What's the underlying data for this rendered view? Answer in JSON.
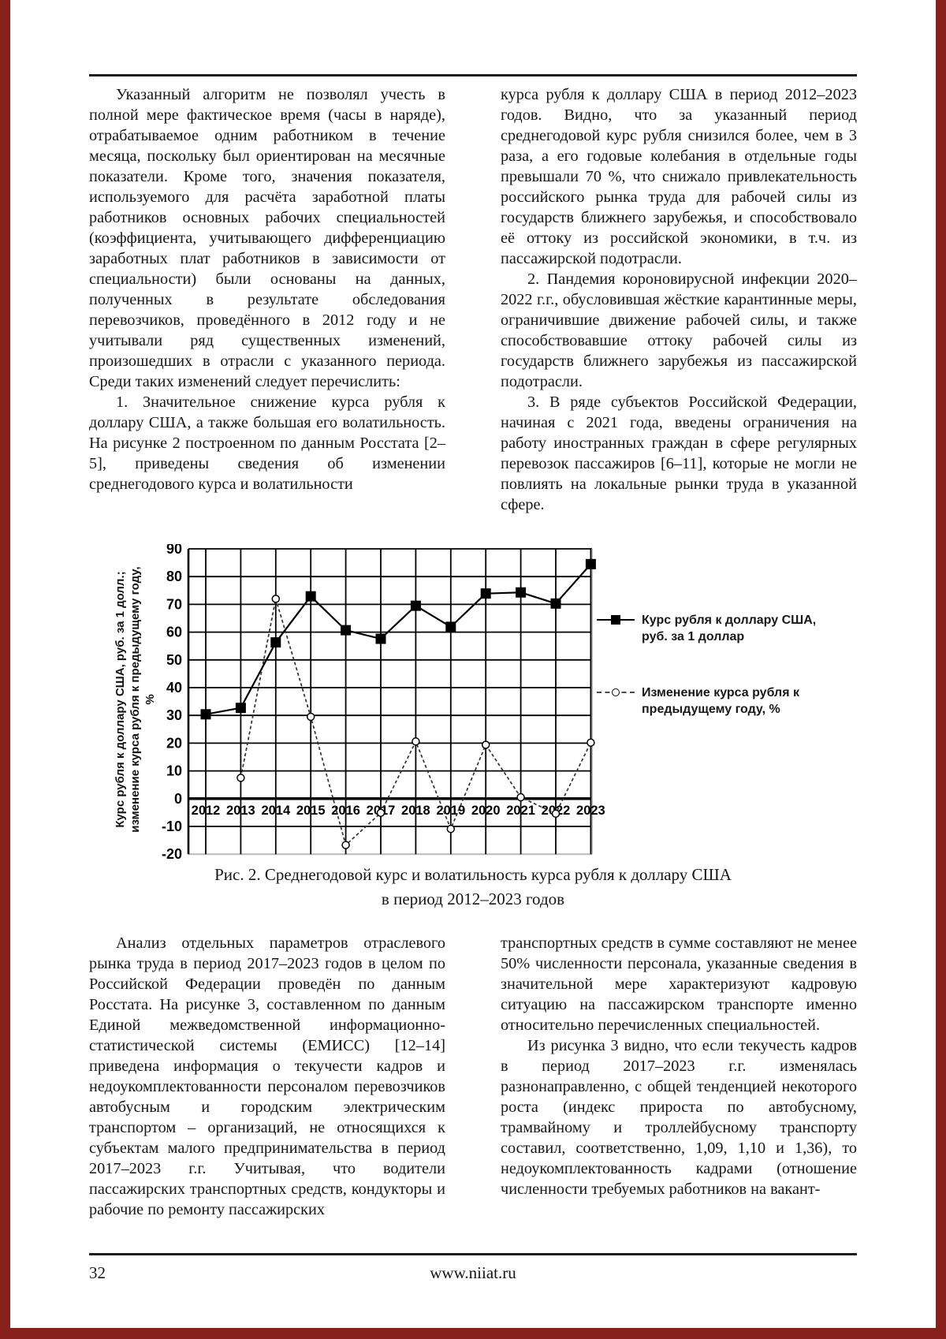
{
  "article": {
    "top_left": {
      "p1": "Указанный алгоритм не позволял учесть в полной мере фактическое время (часы в наряде), отрабатываемое одним работником в течение месяца, поскольку был ориентирован на месячные показатели. Кроме того, значения показателя, используемого для расчёта заработной платы работников основных рабочих специальностей (коэффициента, учитывающего дифференциацию заработных плат работников в зависимости от специальности) были основаны на данных, полученных в результате обследования перевозчиков, проведённого в 2012 году и не учитывали ряд существенных изменений, произошедших в отрасли с указанного периода. Среди таких изменений следует перечислить:",
      "p2": "1. Значительное снижение курса рубля к доллару США, а также большая его волатильность. На рисунке 2 построенном по данным Росстата [2–5], приведены сведения об изменении среднегодового курса и волатильности"
    },
    "top_right": {
      "p1": "курса рубля к доллару США в период 2012–2023 годов. Видно, что за указанный период среднегодовой курс рубля снизился более, чем в 3 раза, а его годовые колебания в отдельные годы превышали 70 %, что снижало привлекательность российского рынка труда для рабочей силы из государств ближнего зарубежья, и способствовало её оттоку из российской экономики, в т.ч. из пассажирской подотрасли.",
      "p2": "2. Пандемия короновирусной инфекции 2020–2022 г.г., обусловившая жёсткие карантинные меры, ограничившие движение рабочей силы, и также способствовавшие оттоку рабочей силы из государств ближнего зарубежья из пассажирской подотрасли.",
      "p3": "3. В ряде субъектов Российской Федерации, начиная с 2021 года, введены ограничения на работу иностранных граждан в сфере регулярных перевозок пассажиров [6–11], которые не могли не повлиять на локальные рынки труда в указанной сфере."
    },
    "bottom_left": {
      "p1": "Анализ отдельных параметров отраслевого рынка труда в период 2017–2023 годов в целом по Российской Федерации проведён по данным Росстата. На рисунке 3, составленном по данным Единой межведомственной информационно-статистической системы (ЕМИСС) [12–14] приведена информация о текучести кадров и недоукомплектованности персоналом перевозчиков автобусным и городским электрическим транспортом – организаций, не относящихся к субъектам малого предпринимательства в период 2017–2023 г.г. Учитывая, что водители пассажирских транспортных средств, кондукторы и рабочие по ремонту пассажирских"
    },
    "bottom_right": {
      "p1": "транспортных средств в сумме составляют не менее 50% численности персонала, указанные сведения в значительной мере характеризуют кадровую ситуацию на пассажирском транспорте именно относительно перечисленных специальностей.",
      "p2": "Из рисунка 3 видно, что если текучесть кадров в период 2017–2023 г.г. изменялась разнонаправленно, с общей тенденцией некоторого роста (индекс прироста по автобусному, трамвайному и троллейбусному транспорту составил, соответственно, 1,09, 1,10 и 1,36), то недоукомплектованность кадрами (отношение численности требуемых работников на вакант-"
    }
  },
  "figure": {
    "caption_line1": "Рис. 2. Среднегодовой курс и волатильность курса рубля к доллару США",
    "caption_line2": "в период 2012–2023 годов",
    "y_axis_label_line1": "Курс рубля к доллару США, руб. за 1 долл.;",
    "y_axis_label_line2": "изменение курса рубля к предыдущему году,",
    "y_axis_label_line3": "%",
    "legend": [
      {
        "label_line1": "Курс рубля к доллару США,",
        "label_line2": "руб. за 1 доллар",
        "marker": "filled-square",
        "line": "solid"
      },
      {
        "label_line1": "Изменение курса рубля к",
        "label_line2": "предыдущему году, %",
        "marker": "open-circle",
        "line": "dashed"
      }
    ]
  },
  "chart_data": {
    "type": "line",
    "categories": [
      "2012",
      "2013",
      "2014",
      "2015",
      "2016",
      "2017",
      "2018",
      "2019",
      "2020",
      "2021",
      "2022",
      "2023"
    ],
    "series": [
      {
        "name": "Курс рубля к доллару США, руб. за 1 доллар",
        "marker": "filled-square",
        "line": "solid",
        "values": [
          30.4,
          32.7,
          56.3,
          72.9,
          60.7,
          57.6,
          69.5,
          61.9,
          73.9,
          74.3,
          70.3,
          84.5
        ]
      },
      {
        "name": "Изменение курса рубля к предыдущему году, %",
        "marker": "open-circle",
        "line": "dashed",
        "values": [
          null,
          7.5,
          72.0,
          29.5,
          -16.7,
          -5.1,
          20.6,
          -10.9,
          19.4,
          0.5,
          -5.4,
          20.2
        ]
      }
    ],
    "ylim": [
      -20,
      90
    ],
    "ytick_step": 10,
    "grid": true,
    "legend_position": "right"
  },
  "footer": {
    "page_number": "32",
    "website": "www.niiat.ru"
  },
  "colors": {
    "frame_red": "#87211b",
    "rule_black": "#1d1d1d",
    "series_black": "#000000"
  }
}
